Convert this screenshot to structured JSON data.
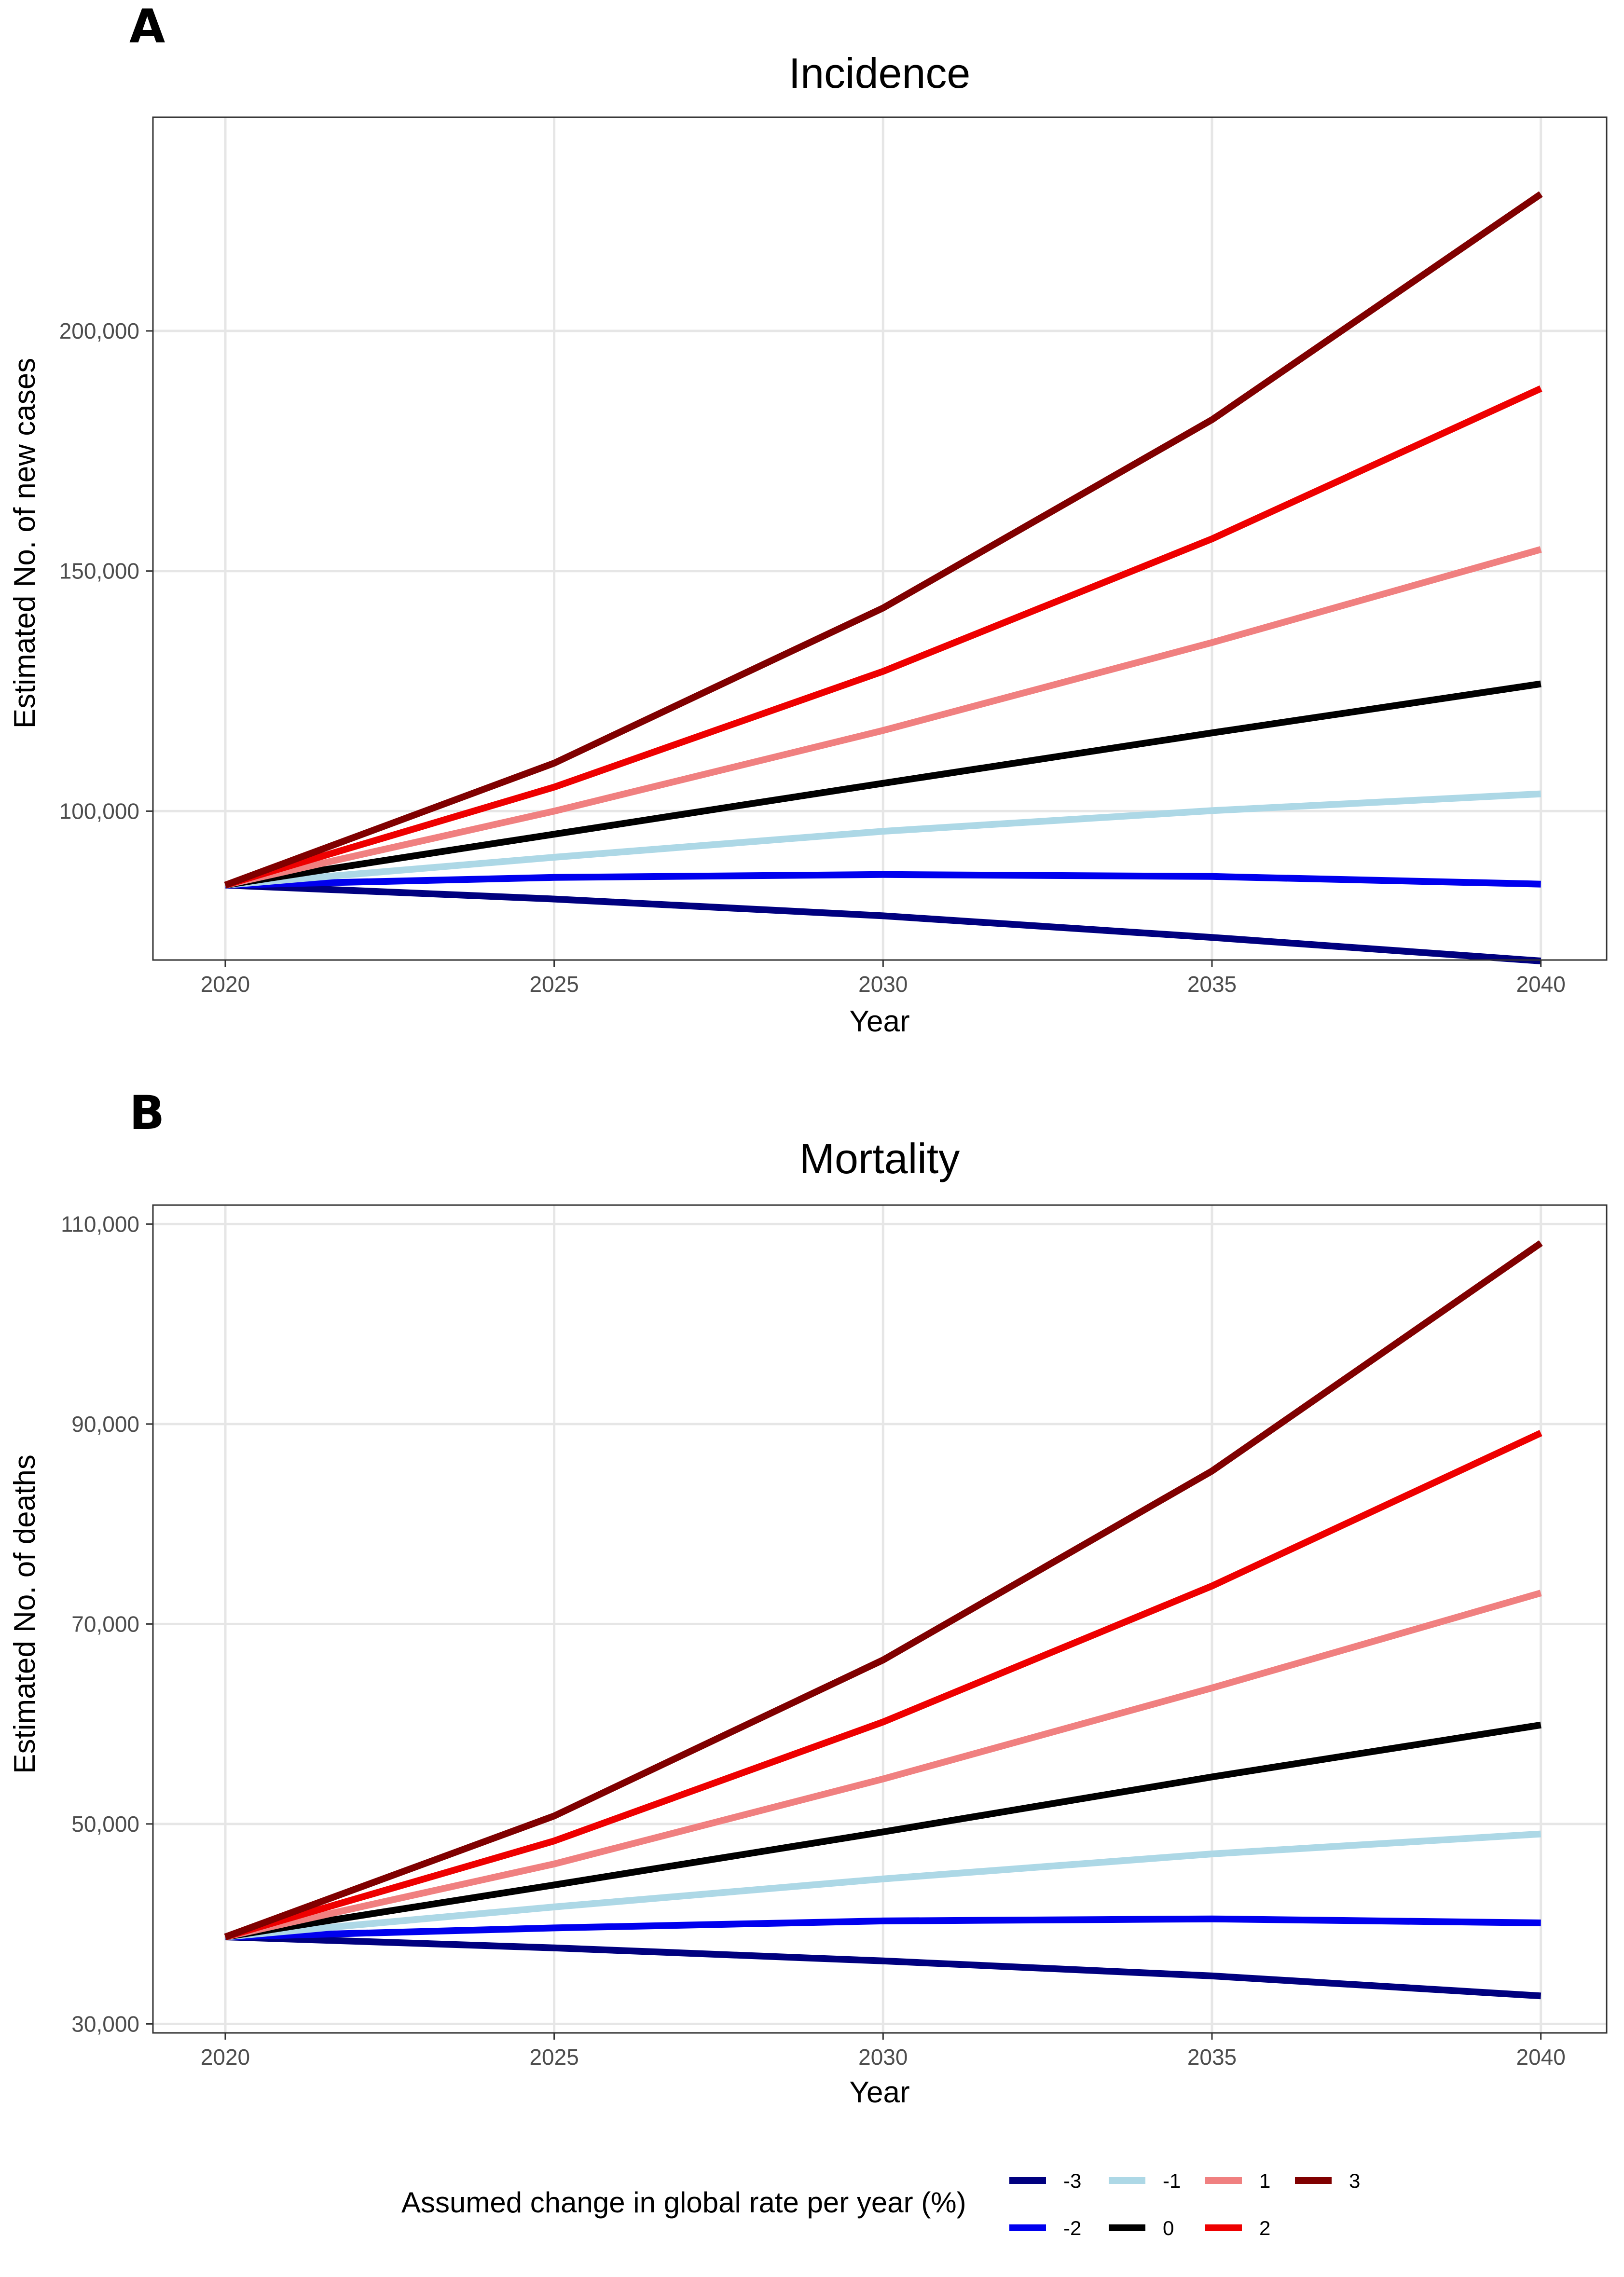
{
  "chart_data": [
    {
      "type": "line",
      "panel": "A",
      "title": "Incidence",
      "xlabel": "Year",
      "ylabel": "Estimated No. of new cases",
      "x": [
        2020,
        2025,
        2030,
        2035,
        2040
      ],
      "x_tick_labels": [
        "2020",
        "2025",
        "2030",
        "2035",
        "2040"
      ],
      "xlim": [
        2018.9,
        2041.0
      ],
      "ylim": [
        69000,
        244500
      ],
      "y_ticks": [
        100000,
        150000,
        200000
      ],
      "y_tick_labels": [
        "100,000",
        "150,000",
        "200,000"
      ],
      "grid": true,
      "series": [
        {
          "name": "-3",
          "color": "#00007F",
          "values": [
            84600,
            81700,
            78200,
            73700,
            68800
          ]
        },
        {
          "name": "-2",
          "color": "#0000EE",
          "values": [
            84600,
            86200,
            86800,
            86400,
            84800
          ]
        },
        {
          "name": "-1",
          "color": "#ADD8E6",
          "values": [
            84600,
            90400,
            95800,
            100100,
            103600
          ]
        },
        {
          "name": "0",
          "color": "#000000",
          "values": [
            84600,
            95200,
            105800,
            116300,
            126500
          ]
        },
        {
          "name": "1",
          "color": "#F08080",
          "values": [
            84600,
            100000,
            116800,
            135100,
            154500
          ]
        },
        {
          "name": "2",
          "color": "#EE0000",
          "values": [
            84600,
            105000,
            129100,
            156700,
            188000
          ]
        },
        {
          "name": "3",
          "color": "#800000",
          "values": [
            84600,
            110000,
            142300,
            181500,
            228500
          ]
        }
      ]
    },
    {
      "type": "line",
      "panel": "B",
      "title": "Mortality",
      "xlabel": "Year",
      "ylabel": "Estimated No. of deaths",
      "x": [
        2020,
        2025,
        2030,
        2035,
        2040
      ],
      "x_tick_labels": [
        "2020",
        "2025",
        "2030",
        "2035",
        "2040"
      ],
      "xlim": [
        2018.9,
        2041.0
      ],
      "ylim": [
        29100,
        111900
      ],
      "y_ticks": [
        30000,
        50000,
        70000,
        90000,
        110000
      ],
      "y_tick_labels": [
        "30,000",
        "50,000",
        "70,000",
        "90,000",
        "110,000"
      ],
      "grid": true,
      "series": [
        {
          "name": "-3",
          "color": "#00007F",
          "values": [
            38700,
            37600,
            36300,
            34800,
            32800
          ]
        },
        {
          "name": "-2",
          "color": "#0000EE",
          "values": [
            38700,
            39600,
            40300,
            40500,
            40100
          ]
        },
        {
          "name": "-1",
          "color": "#ADD8E6",
          "values": [
            38700,
            41700,
            44500,
            47000,
            49000
          ]
        },
        {
          "name": "0",
          "color": "#000000",
          "values": [
            38700,
            43900,
            49200,
            54700,
            59900
          ]
        },
        {
          "name": "1",
          "color": "#F08080",
          "values": [
            38700,
            46000,
            54500,
            63600,
            73100
          ]
        },
        {
          "name": "2",
          "color": "#EE0000",
          "values": [
            38700,
            48300,
            60200,
            73800,
            89100
          ]
        },
        {
          "name": "3",
          "color": "#800000",
          "values": [
            38700,
            50800,
            66400,
            85300,
            108100
          ]
        }
      ]
    }
  ],
  "legend": {
    "title": "Assumed change in global rate per year (%)",
    "position": "bottom"
  }
}
